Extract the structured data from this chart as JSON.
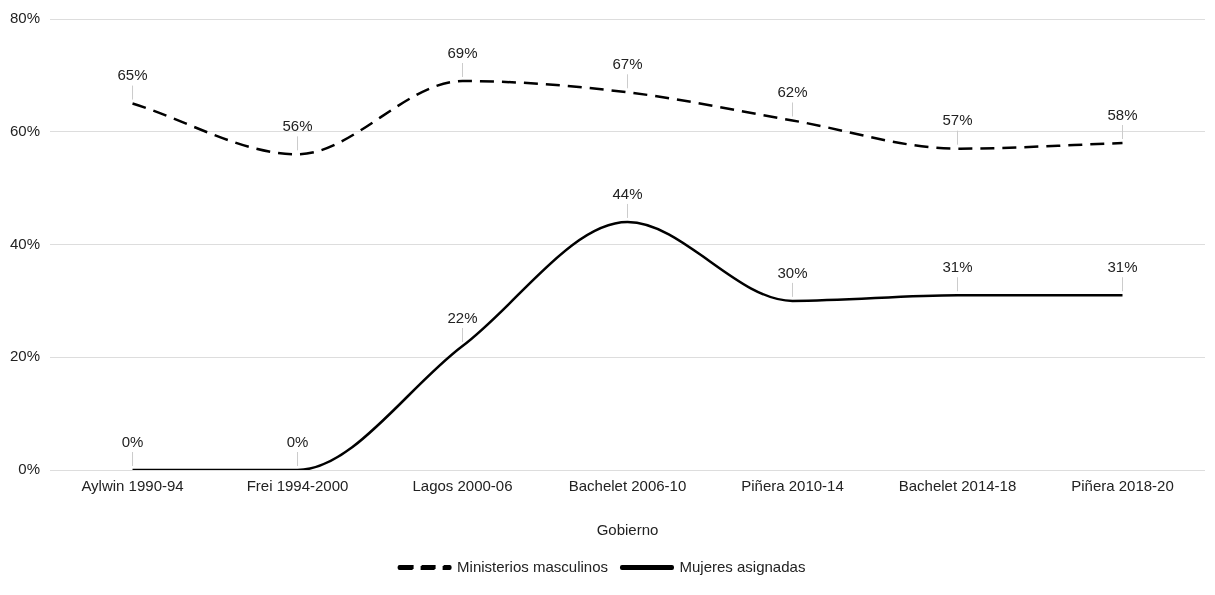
{
  "chart_data": {
    "type": "line",
    "xlabel": "Gobierno",
    "categories": [
      "Aylwin 1990-94",
      "Frei 1994-2000",
      "Lagos 2000-06",
      "Bachelet 2006-10",
      "Piñera 2010-14",
      "Bachelet 2014-18",
      "Piñera 2018-20"
    ],
    "series": [
      {
        "name": "Ministerios masculinos",
        "color": "#000000",
        "line_style": "dashed",
        "values": [
          65,
          56,
          69,
          67,
          62,
          57,
          58
        ],
        "value_labels": [
          "65%",
          "56%",
          "69%",
          "67%",
          "62%",
          "57%",
          "58%"
        ]
      },
      {
        "name": "Mujeres asignadas",
        "color": "#000000",
        "line_style": "solid",
        "values": [
          0,
          0,
          22,
          44,
          30,
          31,
          31
        ],
        "value_labels": [
          "0%",
          "0%",
          "22%",
          "44%",
          "30%",
          "31%",
          "31%"
        ]
      }
    ],
    "ylim": [
      0,
      80
    ],
    "yticks": [
      {
        "value": 0,
        "label": "0%"
      },
      {
        "value": 20,
        "label": "20%"
      },
      {
        "value": 40,
        "label": "40%"
      },
      {
        "value": 60,
        "label": "60%"
      },
      {
        "value": 80,
        "label": "80%"
      }
    ],
    "grid": "y",
    "legend": "bottom",
    "marker": "none"
  }
}
